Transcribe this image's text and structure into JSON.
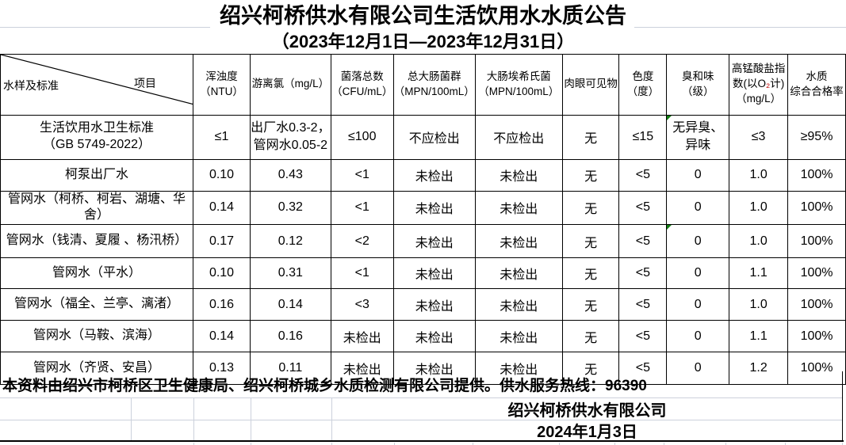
{
  "title": "绍兴柯桥供水有限公司生活饮用水水质公告",
  "subtitle": "（2023年12月1日—2023年12月31日）",
  "table": {
    "corner": {
      "left": "水样及标准",
      "right": "项目"
    },
    "columns": [
      "浑浊度\n（NTU）",
      "游离氯（mg/L）",
      "菌落总数\n（CFU/mL）",
      "总大肠菌群\n（MPN/100mL）",
      "大肠埃希氏菌\n（MPN/100mL）",
      "肉眼可见物",
      "色度\n（度）",
      "臭和味\n（级）",
      "高锰酸盐指\n数(以O₂计)\n（mg/L）",
      "水质\n综合合格率"
    ],
    "rows": [
      {
        "label": "生活饮用水卫生标准\n（GB 5749-2022）",
        "values": [
          "≤1",
          "出厂水0.3-2，\n管网水0.05-2",
          "≤100",
          "不应检出",
          "不应检出",
          "无",
          "≤15",
          "无异臭、\n异味",
          "≤3",
          "≥95%"
        ]
      },
      {
        "label": "柯泵出厂水",
        "values": [
          "0.10",
          "0.43",
          "<1",
          "未检出",
          "未检出",
          "无",
          "<5",
          "0",
          "1.0",
          "100%"
        ]
      },
      {
        "label": "管网水（柯桥、柯岩、湖塘、华\n舍）",
        "values": [
          "0.14",
          "0.32",
          "<1",
          "未检出",
          "未检出",
          "无",
          "<5",
          "0",
          "1.0",
          "100%"
        ]
      },
      {
        "label": "管网水（钱清、夏履 、杨汛桥）",
        "values": [
          "0.17",
          "0.12",
          "<2",
          "未检出",
          "未检出",
          "无",
          "<5",
          "0",
          "1.0",
          "100%"
        ]
      },
      {
        "label": "管网水（平水）",
        "values": [
          "0.10",
          "0.31",
          "<1",
          "未检出",
          "未检出",
          "无",
          "<5",
          "0",
          "1.1",
          "100%"
        ]
      },
      {
        "label": "管网水（福全、兰亭、漓渚）",
        "values": [
          "0.16",
          "0.14",
          "<3",
          "未检出",
          "未检出",
          "无",
          "<5",
          "0",
          "1.0",
          "100%"
        ]
      },
      {
        "label": "管网水（马鞍、滨海）",
        "values": [
          "0.14",
          "0.16",
          "未检出",
          "未检出",
          "未检出",
          "无",
          "<5",
          "0",
          "1.1",
          "100%"
        ]
      },
      {
        "label": "管网水（齐贤、安昌）",
        "values": [
          "0.13",
          "0.11",
          "未检出",
          "未检出",
          "未检出",
          "无",
          "<5",
          "0",
          "1.2",
          "100%"
        ]
      }
    ],
    "flags": [
      {
        "row": 0,
        "col": 7
      },
      {
        "row": 3,
        "col": 7
      }
    ]
  },
  "footer": {
    "note": "本资料由绍兴市柯桥区卫生健康局、绍兴柯桥城乡水质检测有限公司提供。供水服务热线：96390",
    "company": "绍兴柯桥供水有限公司",
    "date": "2024年1月3日"
  },
  "colors": {
    "flag_green": "#107c10",
    "subscript_red": "#c00000",
    "gridline_gray": "#ccd1dc"
  }
}
